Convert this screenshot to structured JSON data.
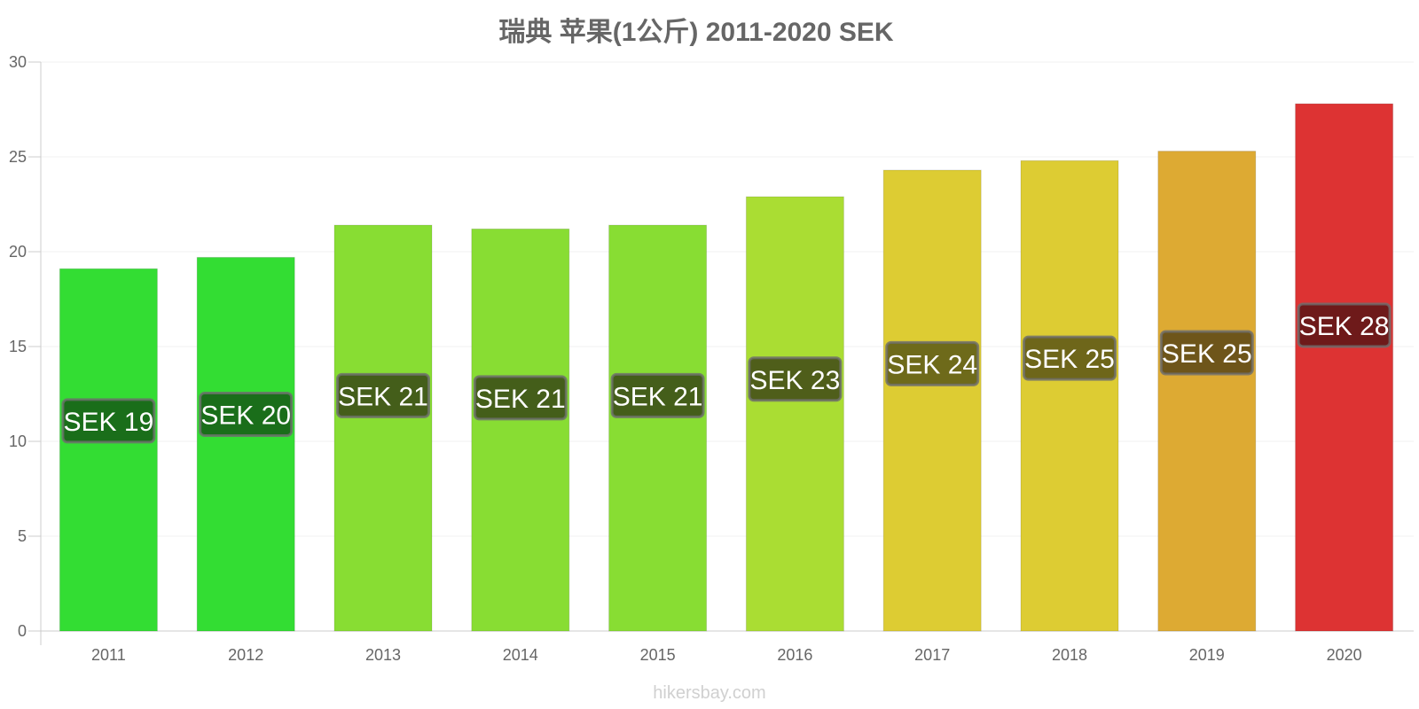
{
  "chart_data": {
    "type": "bar",
    "title": "瑞典 苹果(1公斤) 2011-2020 SEK",
    "categories": [
      "2011",
      "2012",
      "2013",
      "2014",
      "2015",
      "2016",
      "2017",
      "2018",
      "2019",
      "2020"
    ],
    "values": [
      19.1,
      19.7,
      21.4,
      21.2,
      21.4,
      22.9,
      24.3,
      24.8,
      25.3,
      27.8
    ],
    "data_labels": [
      "SEK 19",
      "SEK 20",
      "SEK 21",
      "SEK 21",
      "SEK 21",
      "SEK 23",
      "SEK 24",
      "SEK 25",
      "SEK 25",
      "SEK 28"
    ],
    "bar_colors": [
      "#33dd33",
      "#33dd33",
      "#88dd33",
      "#88dd33",
      "#88dd33",
      "#aadd33",
      "#ddcc33",
      "#ddcc33",
      "#ddaa33",
      "#dd3333"
    ],
    "label_box_colors": [
      "#1a6e1a",
      "#1a6e1a",
      "#445e1a",
      "#445e1a",
      "#445e1a",
      "#4f5e1a",
      "#6e6a1a",
      "#6e661a",
      "#6e551a",
      "#6e1a1a"
    ],
    "yticks": [
      0,
      5,
      10,
      15,
      20,
      25,
      30
    ],
    "ylim": [
      0,
      30
    ],
    "xlabel": "",
    "ylabel": "",
    "grid": true,
    "legend": "none"
  },
  "watermark": "hikersbay.com"
}
